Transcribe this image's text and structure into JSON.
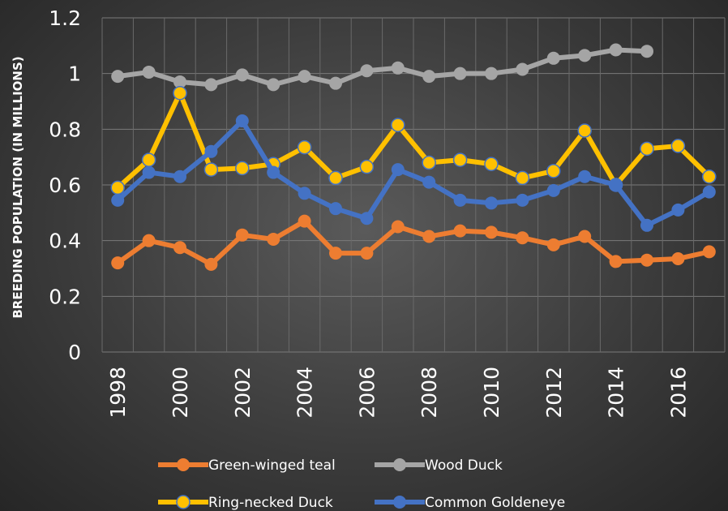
{
  "chart_data": {
    "type": "line",
    "title": "",
    "xlabel": "",
    "ylabel": "BREEDING POPULATION (IN MILLIONS)",
    "ylim": [
      0,
      1.2
    ],
    "yticks": [
      "0",
      "0.2",
      "0.4",
      "0.6",
      "0.8",
      "1",
      "1.2"
    ],
    "x": [
      1998,
      1999,
      2000,
      2001,
      2002,
      2003,
      2004,
      2005,
      2006,
      2007,
      2008,
      2009,
      2010,
      2011,
      2012,
      2013,
      2014,
      2015,
      2016,
      2017
    ],
    "xtick_labels": [
      "1998",
      "2000",
      "2002",
      "2004",
      "2006",
      "2008",
      "2010",
      "2012",
      "2014",
      "2016"
    ],
    "grid": true,
    "legend_position": "bottom",
    "series": [
      {
        "name": "Green-winged teal",
        "color": "#ED7D31",
        "values": [
          0.32,
          0.4,
          0.375,
          0.315,
          0.42,
          0.405,
          0.47,
          0.355,
          0.355,
          0.45,
          0.415,
          0.435,
          0.43,
          0.41,
          0.385,
          0.415,
          0.325,
          0.33,
          0.335,
          0.36
        ]
      },
      {
        "name": "Wood Duck",
        "color": "#A5A5A5",
        "values": [
          0.99,
          1.005,
          0.97,
          0.96,
          0.995,
          0.96,
          0.99,
          0.965,
          1.01,
          1.02,
          0.99,
          1.0,
          1.0,
          1.015,
          1.055,
          1.065,
          1.085,
          1.08,
          null,
          null
        ]
      },
      {
        "name": "Ring-necked Duck",
        "color": "#FFC000",
        "values": [
          0.59,
          0.69,
          0.93,
          0.655,
          0.66,
          0.675,
          0.735,
          0.625,
          0.665,
          0.815,
          0.68,
          0.69,
          0.675,
          0.625,
          0.65,
          0.795,
          0.6,
          0.73,
          0.74,
          0.63
        ]
      },
      {
        "name": "Common Goldeneye",
        "color": "#4472C4",
        "values": [
          0.545,
          0.645,
          0.63,
          0.72,
          0.83,
          0.645,
          0.57,
          0.515,
          0.48,
          0.655,
          0.61,
          0.545,
          0.535,
          0.545,
          0.58,
          0.63,
          0.6,
          0.455,
          0.51,
          0.575
        ]
      }
    ]
  }
}
